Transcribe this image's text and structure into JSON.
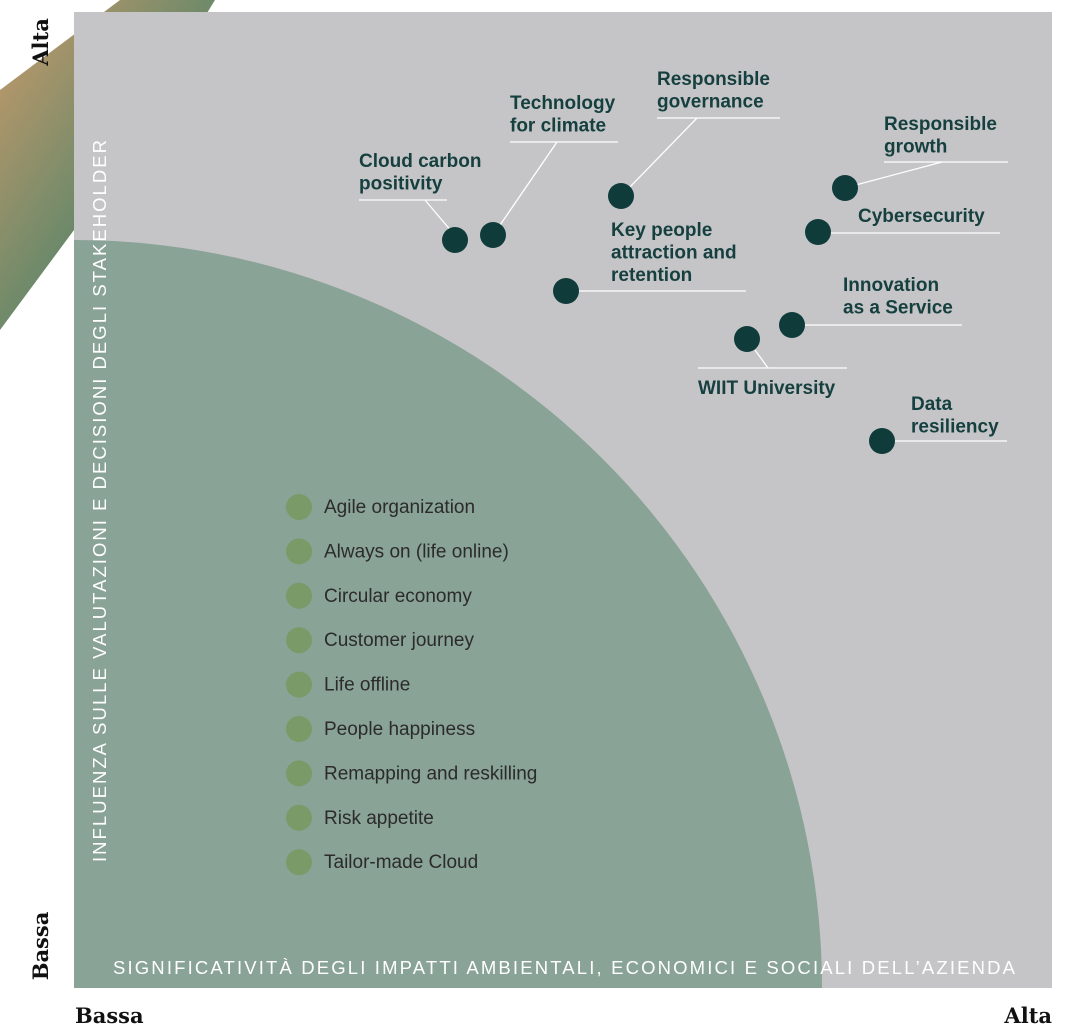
{
  "axes": {
    "y_title": "INFLUENZA SULLE VALUTAZIONI E DECISIONI DEGLI STAKEHOLDER",
    "x_title": "SIGNIFICATIVITÀ DEGLI IMPATTI AMBIENTALI, ECONOMICI E SOCIALI DELL’AZIENDA",
    "y_high": "Alta",
    "y_low": "Bassa",
    "x_low": "Bassa",
    "x_high": "Alta"
  },
  "material_topics": [
    {
      "lines": [
        "Cloud carbon",
        "positivity"
      ]
    },
    {
      "lines": [
        "Technology",
        "for climate"
      ]
    },
    {
      "lines": [
        "Responsible",
        "governance"
      ]
    },
    {
      "lines": [
        "Responsible",
        "growth"
      ]
    },
    {
      "lines": [
        "Cybersecurity"
      ]
    },
    {
      "lines": [
        "Key people",
        "attraction and",
        "retention"
      ]
    },
    {
      "lines": [
        "Innovation",
        "as a Service"
      ]
    },
    {
      "lines": [
        "WIIT University"
      ]
    },
    {
      "lines": [
        "Data",
        "resiliency"
      ]
    }
  ],
  "other_topics": [
    "Agile organization",
    "Always on (life online)",
    "Circular economy",
    "Customer journey",
    "Life offline",
    "People happiness",
    "Remapping and reskilling",
    "Risk appetite",
    "Tailor-made Cloud"
  ]
}
